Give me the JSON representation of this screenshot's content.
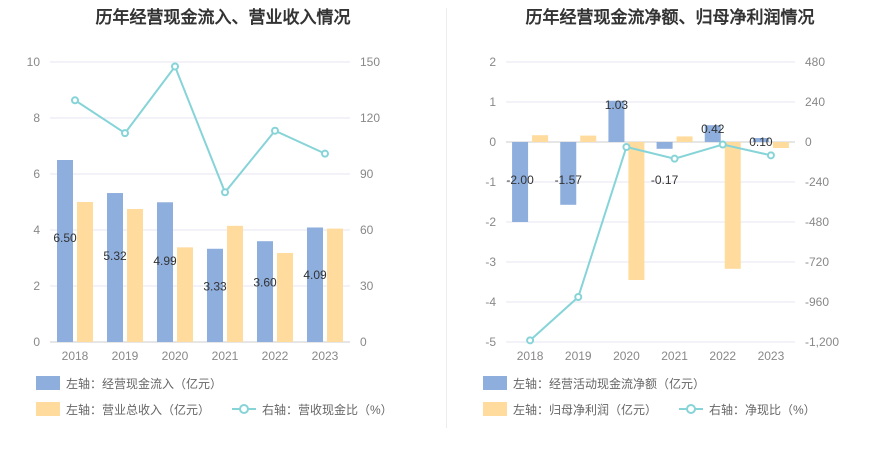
{
  "colors": {
    "bar_primary": "#8eaedd",
    "bar_secondary": "#ffdb9e",
    "line": "#86d4d8",
    "grid": "#e4e6f0",
    "axis": "#cccccc"
  },
  "chart_data": [
    {
      "type": "bar+line",
      "title": "历年经营现金流入、营业收入情况",
      "categories": [
        "2018",
        "2019",
        "2020",
        "2021",
        "2022",
        "2023"
      ],
      "left_axis": {
        "ylim": [
          0,
          10
        ],
        "ticks": [
          "0",
          "2",
          "4",
          "6",
          "8",
          "10"
        ]
      },
      "right_axis": {
        "ylim": [
          0,
          150
        ],
        "ticks": [
          "0",
          "30",
          "60",
          "90",
          "120",
          "150"
        ]
      },
      "grid": true,
      "legend_position": "bottom-left",
      "series": [
        {
          "name": "左轴：经营现金流入（亿元）",
          "type": "bar",
          "axis": "left",
          "values": [
            6.5,
            5.32,
            4.99,
            3.33,
            3.6,
            4.09
          ],
          "labels": [
            "6.50",
            "5.32",
            "4.99",
            "3.33",
            "3.60",
            "4.09"
          ]
        },
        {
          "name": "左轴：营业总收入（亿元）",
          "type": "bar",
          "axis": "left",
          "values": [
            5.0,
            4.75,
            3.38,
            4.15,
            3.18,
            4.05
          ]
        },
        {
          "name": "右轴：营收现金比（%）",
          "type": "line",
          "axis": "right",
          "values": [
            129.5,
            111.9,
            147.6,
            80.2,
            113.2,
            100.9
          ]
        }
      ]
    },
    {
      "type": "bar+line",
      "title": "历年经营现金流净额、归母净利润情况",
      "categories": [
        "2018",
        "2019",
        "2020",
        "2021",
        "2022",
        "2023"
      ],
      "left_axis": {
        "ylim": [
          -5,
          2
        ],
        "ticks": [
          "-5",
          "-4",
          "-3",
          "-2",
          "-1",
          "0",
          "1",
          "2"
        ]
      },
      "right_axis": {
        "ylim": [
          -1200,
          480
        ],
        "ticks": [
          "-1,200",
          "-960",
          "-720",
          "-480",
          "-240",
          "0",
          "240",
          "480"
        ]
      },
      "grid": true,
      "legend_position": "bottom-left",
      "series": [
        {
          "name": "左轴：经营活动现金流净额（亿元）",
          "type": "bar",
          "axis": "left",
          "values": [
            -2.0,
            -1.57,
            1.03,
            -0.17,
            0.42,
            0.1
          ],
          "labels": [
            "-2.00",
            "-1.57",
            "1.03",
            "-0.17",
            "0.42",
            "0.10"
          ]
        },
        {
          "name": "左轴：归母净利润（亿元）",
          "type": "bar",
          "axis": "left",
          "values": [
            0.17,
            0.16,
            -3.45,
            0.14,
            -3.17,
            -0.15
          ]
        },
        {
          "name": "右轴：净现比（%）",
          "type": "line",
          "axis": "right",
          "values": [
            -1190,
            -930,
            -30,
            -100,
            -15,
            -80
          ]
        }
      ]
    }
  ]
}
